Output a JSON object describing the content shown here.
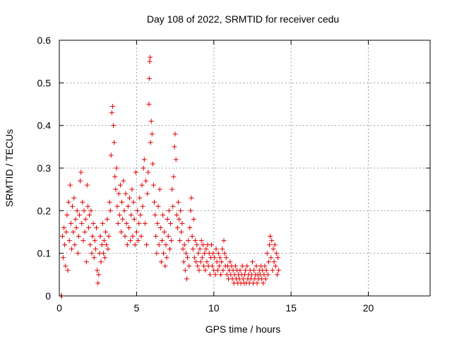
{
  "chart_data": {
    "type": "scatter",
    "title": "Day 108 of 2022, SRMTID for receiver cedu",
    "xlabel": "GPS time / hours",
    "ylabel": "SRMTID / TECUs",
    "xlim": [
      0,
      24
    ],
    "ylim": [
      0,
      0.6
    ],
    "xticks": [
      0,
      5,
      10,
      15,
      20
    ],
    "xtick_labels": [
      "0",
      "5",
      "10",
      "15",
      "20"
    ],
    "yticks": [
      0,
      0.1,
      0.2,
      0.3,
      0.4,
      0.5,
      0.6
    ],
    "ytick_labels": [
      "0",
      "0.1",
      "0.2",
      "0.3",
      "0.4",
      "0.5",
      "0.6"
    ],
    "grid": true,
    "marker": "+",
    "color": "#e00000",
    "series": [
      {
        "name": "SRMTID",
        "points": [
          [
            0.12,
            0.0
          ],
          [
            0.15,
            0.0
          ],
          [
            0.2,
            0.14
          ],
          [
            0.25,
            0.09
          ],
          [
            0.3,
            0.16
          ],
          [
            0.35,
            0.12
          ],
          [
            0.4,
            0.07
          ],
          [
            0.45,
            0.15
          ],
          [
            0.5,
            0.19
          ],
          [
            0.55,
            0.06
          ],
          [
            0.6,
            0.22
          ],
          [
            0.65,
            0.13
          ],
          [
            0.7,
            0.26
          ],
          [
            0.75,
            0.17
          ],
          [
            0.8,
            0.11
          ],
          [
            0.85,
            0.21
          ],
          [
            0.9,
            0.15
          ],
          [
            0.95,
            0.23
          ],
          [
            1.0,
            0.12
          ],
          [
            1.05,
            0.18
          ],
          [
            1.1,
            0.16
          ],
          [
            1.15,
            0.2
          ],
          [
            1.2,
            0.1
          ],
          [
            1.25,
            0.14
          ],
          [
            1.3,
            0.19
          ],
          [
            1.35,
            0.27
          ],
          [
            1.4,
            0.29
          ],
          [
            1.45,
            0.17
          ],
          [
            1.5,
            0.22
          ],
          [
            1.55,
            0.13
          ],
          [
            1.6,
            0.2
          ],
          [
            1.65,
            0.15
          ],
          [
            1.7,
            0.18
          ],
          [
            1.75,
            0.08
          ],
          [
            1.8,
            0.26
          ],
          [
            1.85,
            0.21
          ],
          [
            1.9,
            0.16
          ],
          [
            1.95,
            0.19
          ],
          [
            2.0,
            0.12
          ],
          [
            2.05,
            0.2
          ],
          [
            2.1,
            0.1
          ],
          [
            2.15,
            0.14
          ],
          [
            2.2,
            0.17
          ],
          [
            2.25,
            0.09
          ],
          [
            2.3,
            0.13
          ],
          [
            2.35,
            0.11
          ],
          [
            2.4,
            0.16
          ],
          [
            2.45,
            0.06
          ],
          [
            2.5,
            0.03
          ],
          [
            2.55,
            0.05
          ],
          [
            2.6,
            0.1
          ],
          [
            2.65,
            0.14
          ],
          [
            2.7,
            0.08
          ],
          [
            2.75,
            0.12
          ],
          [
            2.8,
            0.17
          ],
          [
            2.85,
            0.1
          ],
          [
            2.9,
            0.13
          ],
          [
            2.95,
            0.09
          ],
          [
            3.0,
            0.15
          ],
          [
            3.05,
            0.12
          ],
          [
            3.1,
            0.18
          ],
          [
            3.15,
            0.11
          ],
          [
            3.2,
            0.14
          ],
          [
            3.25,
            0.22
          ],
          [
            3.3,
            0.2
          ],
          [
            3.35,
            0.33
          ],
          [
            3.4,
            0.43
          ],
          [
            3.45,
            0.445
          ],
          [
            3.5,
            0.4
          ],
          [
            3.55,
            0.36
          ],
          [
            3.6,
            0.28
          ],
          [
            3.65,
            0.25
          ],
          [
            3.7,
            0.3
          ],
          [
            3.75,
            0.21
          ],
          [
            3.8,
            0.17
          ],
          [
            3.85,
            0.24
          ],
          [
            3.9,
            0.19
          ],
          [
            3.95,
            0.26
          ],
          [
            4.0,
            0.15
          ],
          [
            4.05,
            0.22
          ],
          [
            4.1,
            0.18
          ],
          [
            4.15,
            0.27
          ],
          [
            4.2,
            0.2
          ],
          [
            4.25,
            0.14
          ],
          [
            4.3,
            0.24
          ],
          [
            4.35,
            0.17
          ],
          [
            4.4,
            0.12
          ],
          [
            4.45,
            0.21
          ],
          [
            4.5,
            0.16
          ],
          [
            4.55,
            0.23
          ],
          [
            4.6,
            0.13
          ],
          [
            4.65,
            0.19
          ],
          [
            4.7,
            0.25
          ],
          [
            4.75,
            0.14
          ],
          [
            4.8,
            0.22
          ],
          [
            4.85,
            0.18
          ],
          [
            4.9,
            0.12
          ],
          [
            4.95,
            0.29
          ],
          [
            5.0,
            0.15
          ],
          [
            5.05,
            0.2
          ],
          [
            5.1,
            0.13
          ],
          [
            5.15,
            0.17
          ],
          [
            5.2,
            0.23
          ],
          [
            5.25,
            0.19
          ],
          [
            5.3,
            0.14
          ],
          [
            5.35,
            0.26
          ],
          [
            5.4,
            0.21
          ],
          [
            5.45,
            0.3
          ],
          [
            5.5,
            0.32
          ],
          [
            5.55,
            0.17
          ],
          [
            5.6,
            0.27
          ],
          [
            5.65,
            0.12
          ],
          [
            5.7,
            0.24
          ],
          [
            5.75,
            0.29
          ],
          [
            5.8,
            0.45
          ],
          [
            5.82,
            0.51
          ],
          [
            5.85,
            0.55
          ],
          [
            5.88,
            0.56
          ],
          [
            5.9,
            0.36
          ],
          [
            5.95,
            0.41
          ],
          [
            6.0,
            0.38
          ],
          [
            6.05,
            0.31
          ],
          [
            6.1,
            0.26
          ],
          [
            6.15,
            0.22
          ],
          [
            6.2,
            0.19
          ],
          [
            6.25,
            0.14
          ],
          [
            6.3,
            0.1
          ],
          [
            6.35,
            0.17
          ],
          [
            6.4,
            0.21
          ],
          [
            6.45,
            0.12
          ],
          [
            6.5,
            0.25
          ],
          [
            6.55,
            0.16
          ],
          [
            6.6,
            0.08
          ],
          [
            6.65,
            0.13
          ],
          [
            6.7,
            0.19
          ],
          [
            6.75,
            0.1
          ],
          [
            6.8,
            0.15
          ],
          [
            6.85,
            0.07
          ],
          [
            6.9,
            0.12
          ],
          [
            6.95,
            0.09
          ],
          [
            7.0,
            0.18
          ],
          [
            7.05,
            0.14
          ],
          [
            7.1,
            0.2
          ],
          [
            7.15,
            0.11
          ],
          [
            7.2,
            0.17
          ],
          [
            7.25,
            0.13
          ],
          [
            7.3,
            0.25
          ],
          [
            7.35,
            0.21
          ],
          [
            7.4,
            0.28
          ],
          [
            7.45,
            0.35
          ],
          [
            7.5,
            0.38
          ],
          [
            7.55,
            0.32
          ],
          [
            7.6,
            0.19
          ],
          [
            7.65,
            0.16
          ],
          [
            7.7,
            0.22
          ],
          [
            7.75,
            0.18
          ],
          [
            7.8,
            0.13
          ],
          [
            7.85,
            0.2
          ],
          [
            7.9,
            0.15
          ],
          [
            7.95,
            0.17
          ],
          [
            8.0,
            0.11
          ],
          [
            8.05,
            0.08
          ],
          [
            8.1,
            0.12
          ],
          [
            8.15,
            0.06
          ],
          [
            8.2,
            0.1
          ],
          [
            8.25,
            0.04
          ],
          [
            8.3,
            0.09
          ],
          [
            8.35,
            0.13
          ],
          [
            8.4,
            0.07
          ],
          [
            8.45,
            0.16
          ],
          [
            8.5,
            0.2
          ],
          [
            8.55,
            0.23
          ],
          [
            8.6,
            0.14
          ],
          [
            8.65,
            0.11
          ],
          [
            8.7,
            0.18
          ],
          [
            8.75,
            0.09
          ],
          [
            8.8,
            0.13
          ],
          [
            8.85,
            0.08
          ],
          [
            8.9,
            0.12
          ],
          [
            8.95,
            0.07
          ],
          [
            9.0,
            0.1
          ],
          [
            9.05,
            0.06
          ],
          [
            9.1,
            0.11
          ],
          [
            9.15,
            0.08
          ],
          [
            9.2,
            0.13
          ],
          [
            9.25,
            0.09
          ],
          [
            9.3,
            0.12
          ],
          [
            9.35,
            0.07
          ],
          [
            9.4,
            0.1
          ],
          [
            9.45,
            0.06
          ],
          [
            9.5,
            0.11
          ],
          [
            9.55,
            0.08
          ],
          [
            9.6,
            0.12
          ],
          [
            9.65,
            0.07
          ],
          [
            9.7,
            0.1
          ],
          [
            9.75,
            0.05
          ],
          [
            9.8,
            0.09
          ],
          [
            9.85,
            0.12
          ],
          [
            9.9,
            0.07
          ],
          [
            9.95,
            0.1
          ],
          [
            10.0,
            0.06
          ],
          [
            10.05,
            0.09
          ],
          [
            10.1,
            0.05
          ],
          [
            10.15,
            0.11
          ],
          [
            10.2,
            0.08
          ],
          [
            10.25,
            0.06
          ],
          [
            10.3,
            0.1
          ],
          [
            10.35,
            0.07
          ],
          [
            10.4,
            0.09
          ],
          [
            10.45,
            0.05
          ],
          [
            10.5,
            0.08
          ],
          [
            10.55,
            0.11
          ],
          [
            10.6,
            0.06
          ],
          [
            10.65,
            0.13
          ],
          [
            10.7,
            0.1
          ],
          [
            10.75,
            0.07
          ],
          [
            10.8,
            0.09
          ],
          [
            10.85,
            0.05
          ],
          [
            10.9,
            0.07
          ],
          [
            10.95,
            0.04
          ],
          [
            11.0,
            0.06
          ],
          [
            11.05,
            0.08
          ],
          [
            11.1,
            0.05
          ],
          [
            11.15,
            0.07
          ],
          [
            11.2,
            0.04
          ],
          [
            11.25,
            0.06
          ],
          [
            11.3,
            0.03
          ],
          [
            11.35,
            0.05
          ],
          [
            11.4,
            0.07
          ],
          [
            11.45,
            0.04
          ],
          [
            11.5,
            0.06
          ],
          [
            11.55,
            0.03
          ],
          [
            11.6,
            0.05
          ],
          [
            11.65,
            0.04
          ],
          [
            11.7,
            0.06
          ],
          [
            11.75,
            0.03
          ],
          [
            11.8,
            0.05
          ],
          [
            11.85,
            0.07
          ],
          [
            11.9,
            0.04
          ],
          [
            11.95,
            0.03
          ],
          [
            12.0,
            0.05
          ],
          [
            12.05,
            0.06
          ],
          [
            12.1,
            0.03
          ],
          [
            12.15,
            0.07
          ],
          [
            12.2,
            0.04
          ],
          [
            12.25,
            0.05
          ],
          [
            12.3,
            0.03
          ],
          [
            12.35,
            0.06
          ],
          [
            12.4,
            0.04
          ],
          [
            12.45,
            0.05
          ],
          [
            12.5,
            0.08
          ],
          [
            12.55,
            0.03
          ],
          [
            12.6,
            0.06
          ],
          [
            12.65,
            0.04
          ],
          [
            12.7,
            0.05
          ],
          [
            12.75,
            0.07
          ],
          [
            12.8,
            0.03
          ],
          [
            12.85,
            0.05
          ],
          [
            12.9,
            0.04
          ],
          [
            12.95,
            0.06
          ],
          [
            13.0,
            0.05
          ],
          [
            13.05,
            0.07
          ],
          [
            13.1,
            0.04
          ],
          [
            13.15,
            0.06
          ],
          [
            13.2,
            0.03
          ],
          [
            13.25,
            0.05
          ],
          [
            13.3,
            0.07
          ],
          [
            13.35,
            0.04
          ],
          [
            13.4,
            0.06
          ],
          [
            13.45,
            0.1
          ],
          [
            13.5,
            0.05
          ],
          [
            13.55,
            0.08
          ],
          [
            13.6,
            0.12
          ],
          [
            13.65,
            0.14
          ],
          [
            13.7,
            0.09
          ],
          [
            13.75,
            0.13
          ],
          [
            13.8,
            0.06
          ],
          [
            13.85,
            0.11
          ],
          [
            13.9,
            0.08
          ],
          [
            13.95,
            0.12
          ],
          [
            14.0,
            0.07
          ],
          [
            14.05,
            0.1
          ],
          [
            14.1,
            0.05
          ],
          [
            14.15,
            0.09
          ],
          [
            14.2,
            0.06
          ]
        ]
      }
    ]
  }
}
